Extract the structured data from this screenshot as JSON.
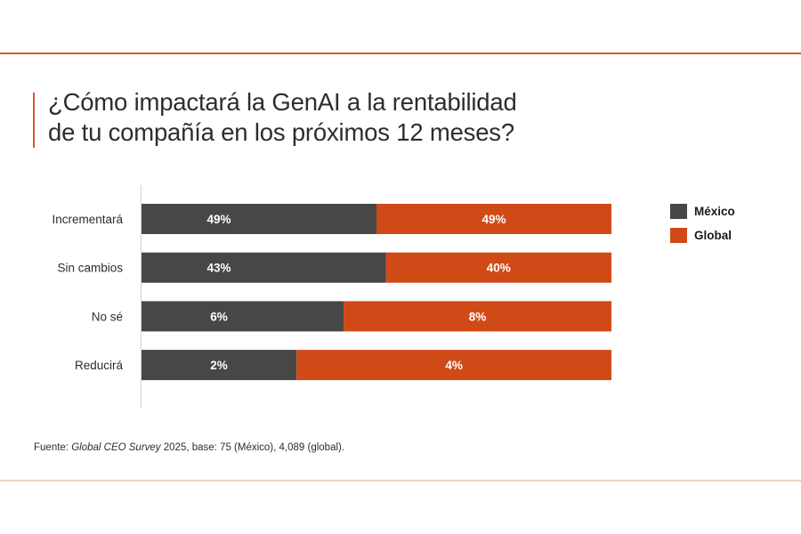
{
  "title_lines": [
    "¿Cómo impactará la GenAI a la rentabilidad",
    "de tu compañía en los próximos 12 meses?"
  ],
  "colors": {
    "mexico": "#474747",
    "global": "#d04a18",
    "accent": "#d35a2a"
  },
  "legend": [
    {
      "name": "México",
      "color": "#474747"
    },
    {
      "name": "Global",
      "color": "#d04a18"
    }
  ],
  "source": {
    "prefix": "Fuente: ",
    "italic": "Global CEO Survey",
    "suffix": " 2025, base: 75 (México), 4,089 (global)."
  },
  "chart_data": {
    "type": "bar",
    "orientation": "horizontal",
    "stacked": true,
    "title": "¿Cómo impactará la GenAI a la rentabilidad de tu compañía en los próximos 12 meses?",
    "categories": [
      "Incrementará",
      "Sin cambios",
      "No sé",
      "Reducirá"
    ],
    "series": [
      {
        "name": "México",
        "values": [
          49,
          43,
          6,
          2
        ],
        "labels": [
          "49%",
          "43%",
          "6%",
          "2%"
        ]
      },
      {
        "name": "Global",
        "values": [
          49,
          40,
          8,
          4
        ],
        "labels": [
          "49%",
          "40%",
          "8%",
          "4%"
        ]
      }
    ],
    "segment_split_share": [
      0.5,
      0.52,
      0.43,
      0.33
    ],
    "xlabel": "",
    "ylabel": "",
    "grid": false,
    "legend_position": "right"
  }
}
